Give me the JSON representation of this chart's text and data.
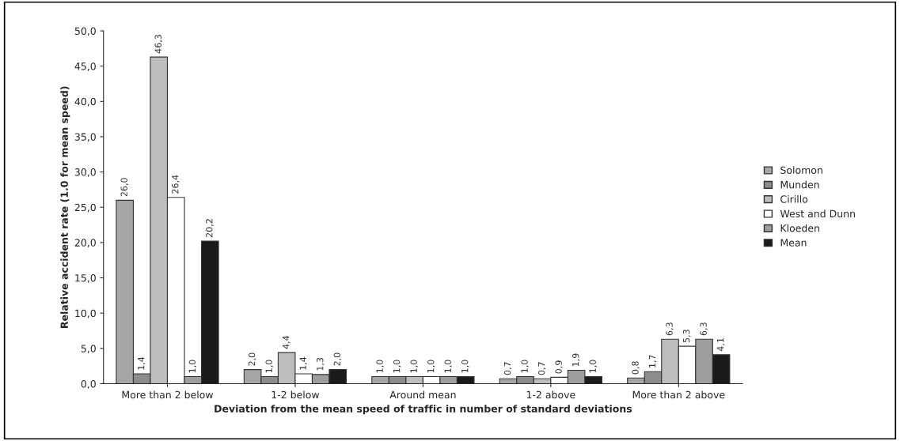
{
  "chart_data": {
    "type": "bar",
    "xlabel": "Deviation from the mean speed of traffic in number of standard deviations",
    "ylabel": "Relative accident rate (1.0 for mean speed)",
    "categories": [
      "More than 2 below",
      "1-2 below",
      "Around mean",
      "1-2 above",
      "More than 2 above"
    ],
    "series": [
      {
        "name": "Solomon",
        "color": "#a6a6a6",
        "values": [
          26.0,
          2.0,
          1.0,
          0.7,
          0.8
        ],
        "value_labels": [
          "26,0",
          "2,0",
          "1,0",
          "0,7",
          "0,8"
        ]
      },
      {
        "name": "Munden",
        "color": "#8c8c8c",
        "values": [
          1.4,
          1.0,
          1.0,
          1.0,
          1.7
        ],
        "value_labels": [
          "1,4",
          "1,0",
          "1,0",
          "1,0",
          "1,7"
        ]
      },
      {
        "name": "Cirillo",
        "color": "#bdbdbd",
        "values": [
          46.3,
          4.4,
          1.0,
          0.7,
          6.3
        ],
        "value_labels": [
          "46,3",
          "4,4",
          "1,0",
          "0,7",
          "6,3"
        ]
      },
      {
        "name": "West and Dunn",
        "color": "#ffffff",
        "values": [
          26.4,
          1.4,
          1.0,
          0.9,
          5.3
        ],
        "value_labels": [
          "26,4",
          "1,4",
          "1,0",
          "0,9",
          "5,3"
        ]
      },
      {
        "name": "Kloeden",
        "color": "#9e9e9e",
        "values": [
          1.0,
          1.3,
          1.0,
          1.9,
          6.3
        ],
        "value_labels": [
          "1,0",
          "1,3",
          "1,0",
          "1,9",
          "6,3"
        ]
      },
      {
        "name": "Mean",
        "color": "#1a1a1a",
        "values": [
          20.2,
          2.0,
          1.0,
          1.0,
          4.1
        ],
        "value_labels": [
          "20,2",
          "2,0",
          "1,0",
          "1,0",
          "4,1"
        ]
      }
    ],
    "ylim": [
      0,
      50
    ],
    "yticks": [
      {
        "value": 0,
        "label": "0,0"
      },
      {
        "value": 5,
        "label": "5,0"
      },
      {
        "value": 10,
        "label": "10,0"
      },
      {
        "value": 15,
        "label": "15,0"
      },
      {
        "value": 20,
        "label": "20,0"
      },
      {
        "value": 25,
        "label": "25,0"
      },
      {
        "value": 30,
        "label": "30,0"
      },
      {
        "value": 35,
        "label": "35,0"
      },
      {
        "value": 40,
        "label": "40,0"
      },
      {
        "value": 45,
        "label": "45,0"
      },
      {
        "value": 50,
        "label": "50,0"
      }
    ],
    "grid": false,
    "legend": "right"
  }
}
